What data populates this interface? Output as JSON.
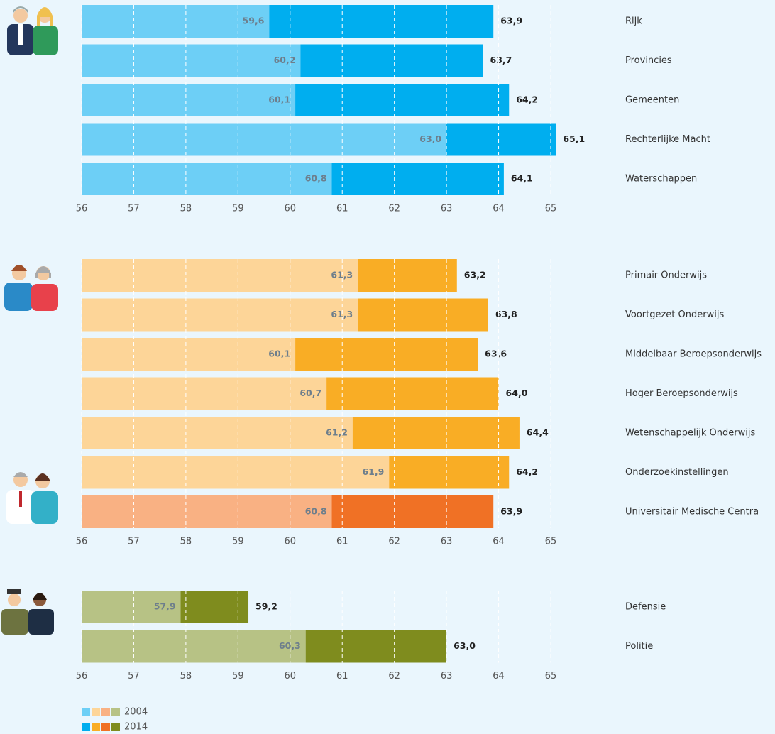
{
  "chart_data": [
    {
      "type": "bar",
      "categories": [
        "Rijk",
        "Provincies",
        "Gemeenten",
        "Rechterlijke Macht",
        "Waterschappen"
      ],
      "series": [
        {
          "name": "2004",
          "color": "#6dcff6",
          "values": [
            59.6,
            60.2,
            60.1,
            63.0,
            60.8
          ],
          "value_labels": [
            "59,6",
            "60,2",
            "60,1",
            "63,0",
            "60,8"
          ]
        },
        {
          "name": "2014",
          "color": "#00aeef",
          "values": [
            63.9,
            63.7,
            64.2,
            65.1,
            64.1
          ],
          "value_labels": [
            "63,9",
            "63,7",
            "64,2",
            "65,1",
            "64,1"
          ]
        }
      ],
      "xlim": [
        56,
        65
      ],
      "xticks": [
        56,
        57,
        58,
        59,
        60,
        61,
        62,
        63,
        64,
        65
      ],
      "grid": true
    },
    {
      "type": "bar",
      "categories": [
        "Primair Onderwijs",
        "Voortgezet Onderwijs",
        "Middelbaar Beroepsonderwijs",
        "Hoger Beroepsonderwijs",
        "Wetenschappelijk Onderwijs",
        "Onderzoekinstellingen",
        "Universitair Medische Centra"
      ],
      "series": [
        {
          "name": "2004",
          "color": "#fdd598",
          "colors": [
            "#fdd598",
            "#fdd598",
            "#fdd598",
            "#fdd598",
            "#fdd598",
            "#fdd598",
            "#f9b183"
          ],
          "values": [
            61.3,
            61.3,
            60.1,
            60.7,
            61.2,
            61.9,
            60.8
          ],
          "value_labels": [
            "61,3",
            "61,3",
            "60,1",
            "60,7",
            "61,2",
            "61,9",
            "60,8"
          ]
        },
        {
          "name": "2014",
          "color": "#f9ad25",
          "colors": [
            "#f9ad25",
            "#f9ad25",
            "#f9ad25",
            "#f9ad25",
            "#f9ad25",
            "#f9ad25",
            "#f07125"
          ],
          "values": [
            63.2,
            63.8,
            63.6,
            64.0,
            64.4,
            64.2,
            63.9
          ],
          "value_labels": [
            "63,2",
            "63,8",
            "63,6",
            "64,0",
            "64,4",
            "64,2",
            "63,9"
          ]
        }
      ],
      "xlim": [
        56,
        65
      ],
      "xticks": [
        56,
        57,
        58,
        59,
        60,
        61,
        62,
        63,
        64,
        65
      ],
      "grid": true
    },
    {
      "type": "bar",
      "categories": [
        "Defensie",
        "Politie"
      ],
      "series": [
        {
          "name": "2004",
          "color": "#b7c285",
          "values": [
            57.9,
            60.3
          ],
          "value_labels": [
            "57,9",
            "60,3"
          ]
        },
        {
          "name": "2014",
          "color": "#7f8c1e",
          "values": [
            59.2,
            63.0
          ],
          "value_labels": [
            "59,2",
            "63,0"
          ]
        }
      ],
      "xlim": [
        56,
        65
      ],
      "xticks": [
        56,
        57,
        58,
        59,
        60,
        61,
        62,
        63,
        64,
        65
      ],
      "grid": true
    }
  ]
}
